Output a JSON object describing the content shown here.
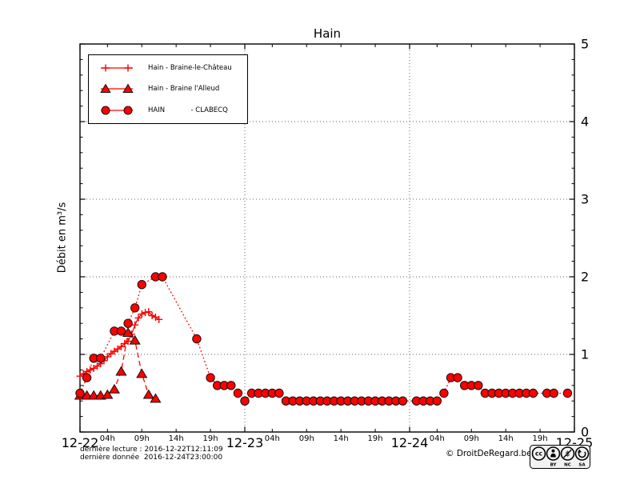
{
  "title": "Hain",
  "ylabel": "Débit en m³/s",
  "accent_color": "#ff0000",
  "marker_edge_color": "#111111",
  "footer": {
    "line1": "dernière lecture : 2016-12-22T12:11:09",
    "line2": "dernière donnée  2016-12-24T23:00:00",
    "copyright": "© DroitDeRegard.be",
    "license": {
      "name": "CC BY-NC-SA",
      "icons": [
        "cc-logo-icon",
        "attribution-icon",
        "non-commercial-icon",
        "share-alike-icon"
      ],
      "parts": [
        "BY",
        "NC",
        "SA"
      ]
    }
  },
  "chart_data": {
    "type": "line",
    "title": "Hain",
    "xlabel": "",
    "ylabel": "Débit en m³/s",
    "x_unit": "hours since 2016-12-22 00:00",
    "xlim": [
      0,
      72
    ],
    "ylim": [
      0,
      5
    ],
    "yticks": [
      0,
      1,
      2,
      3,
      4,
      5
    ],
    "grid": true,
    "legend_position": "upper left",
    "x_major_ticks": [
      {
        "hour": 0,
        "label": "12-22"
      },
      {
        "hour": 24,
        "label": "12-23"
      },
      {
        "hour": 48,
        "label": "12-24"
      },
      {
        "hour": 72,
        "label": "12-25"
      }
    ],
    "x_minor_ticks": [
      {
        "hour": 4,
        "label": "04h"
      },
      {
        "hour": 9,
        "label": "09h"
      },
      {
        "hour": 14,
        "label": "14h"
      },
      {
        "hour": 19,
        "label": "19h"
      },
      {
        "hour": 28,
        "label": "04h"
      },
      {
        "hour": 33,
        "label": "09h"
      },
      {
        "hour": 38,
        "label": "14h"
      },
      {
        "hour": 43,
        "label": "19h"
      },
      {
        "hour": 52,
        "label": "04h"
      },
      {
        "hour": 57,
        "label": "09h"
      },
      {
        "hour": 62,
        "label": "14h"
      },
      {
        "hour": 67,
        "label": "19h"
      }
    ],
    "series": [
      {
        "name": "Hain - Braine-le-Château",
        "marker": "plus",
        "line": "solid",
        "color": "#ff0000",
        "points": [
          [
            0,
            0.72
          ],
          [
            0.5,
            0.75
          ],
          [
            1,
            0.78
          ],
          [
            1.5,
            0.8
          ],
          [
            2,
            0.82
          ],
          [
            2.5,
            0.85
          ],
          [
            3,
            0.88
          ],
          [
            3.5,
            0.92
          ],
          [
            4,
            0.97
          ],
          [
            4.5,
            1.01
          ],
          [
            5,
            1.04
          ],
          [
            5.5,
            1.07
          ],
          [
            6,
            1.1
          ],
          [
            6.5,
            1.14
          ],
          [
            7,
            1.17
          ],
          [
            7.5,
            1.26
          ],
          [
            8,
            1.38
          ],
          [
            8.5,
            1.47
          ],
          [
            9,
            1.52
          ],
          [
            9.5,
            1.54
          ],
          [
            10,
            1.55
          ],
          [
            10.5,
            1.5
          ],
          [
            11,
            1.48
          ],
          [
            11.5,
            1.45
          ]
        ]
      },
      {
        "name": "Hain - Braine l'Alleud",
        "marker": "triangle",
        "line": "dashed",
        "color": "#ff0000",
        "points": [
          [
            0,
            0.47
          ],
          [
            1,
            0.47
          ],
          [
            2,
            0.47
          ],
          [
            3,
            0.47
          ],
          [
            4,
            0.48
          ],
          [
            5,
            0.55
          ],
          [
            6,
            0.78
          ],
          [
            7,
            1.28
          ],
          [
            8,
            1.18
          ],
          [
            9,
            0.75
          ],
          [
            10,
            0.48
          ],
          [
            11,
            0.43
          ]
        ]
      },
      {
        "name": "HAIN            - CLABECQ",
        "marker": "circle",
        "line": "dotted",
        "color": "#ff0000",
        "points": [
          [
            0,
            0.5
          ],
          [
            1,
            0.7
          ],
          [
            2,
            0.95
          ],
          [
            3,
            0.95
          ],
          [
            5,
            1.3
          ],
          [
            6,
            1.3
          ],
          [
            7,
            1.4
          ],
          [
            8,
            1.6
          ],
          [
            9,
            1.9
          ],
          [
            11,
            2.0
          ],
          [
            12,
            2.0
          ],
          [
            17,
            1.2
          ],
          [
            19,
            0.7
          ],
          [
            20,
            0.6
          ],
          [
            21,
            0.6
          ],
          [
            22,
            0.6
          ],
          [
            23,
            0.5
          ],
          [
            24,
            0.4
          ],
          [
            25,
            0.5
          ],
          [
            26,
            0.5
          ],
          [
            27,
            0.5
          ],
          [
            28,
            0.5
          ],
          [
            29,
            0.5
          ],
          [
            30,
            0.4
          ],
          [
            31,
            0.4
          ],
          [
            32,
            0.4
          ],
          [
            33,
            0.4
          ],
          [
            34,
            0.4
          ],
          [
            35,
            0.4
          ],
          [
            36,
            0.4
          ],
          [
            37,
            0.4
          ],
          [
            38,
            0.4
          ],
          [
            39,
            0.4
          ],
          [
            40,
            0.4
          ],
          [
            41,
            0.4
          ],
          [
            42,
            0.4
          ],
          [
            43,
            0.4
          ],
          [
            44,
            0.4
          ],
          [
            45,
            0.4
          ],
          [
            46,
            0.4
          ],
          [
            47,
            0.4
          ],
          [
            49,
            0.4
          ],
          [
            50,
            0.4
          ],
          [
            51,
            0.4
          ],
          [
            52,
            0.4
          ],
          [
            53,
            0.5
          ],
          [
            54,
            0.7
          ],
          [
            55,
            0.7
          ],
          [
            56,
            0.6
          ],
          [
            57,
            0.6
          ],
          [
            58,
            0.6
          ],
          [
            59,
            0.5
          ],
          [
            60,
            0.5
          ],
          [
            61,
            0.5
          ],
          [
            62,
            0.5
          ],
          [
            63,
            0.5
          ],
          [
            64,
            0.5
          ],
          [
            65,
            0.5
          ],
          [
            66,
            0.5
          ],
          [
            68,
            0.5
          ],
          [
            69,
            0.5
          ],
          [
            71,
            0.5
          ]
        ]
      }
    ]
  }
}
